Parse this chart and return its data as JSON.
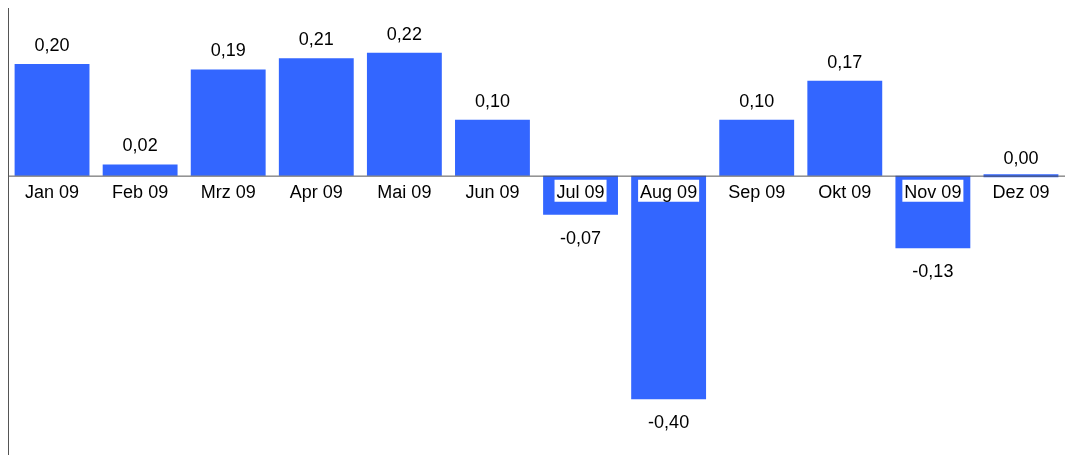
{
  "chart_data": {
    "type": "bar",
    "categories": [
      "Jan 09",
      "Feb 09",
      "Mrz 09",
      "Apr 09",
      "Mai 09",
      "Jun 09",
      "Jul 09",
      "Aug 09",
      "Sep 09",
      "Okt 09",
      "Nov 09",
      "Dez 09"
    ],
    "values": [
      0.2,
      0.02,
      0.19,
      0.21,
      0.22,
      0.1,
      -0.07,
      -0.4,
      0.1,
      0.17,
      -0.13,
      0.0
    ],
    "value_labels": [
      "0,20",
      "0,02",
      "0,19",
      "0,21",
      "0,22",
      "0,10",
      "-0,07",
      "-0,40",
      "0,10",
      "0,17",
      "-0,13",
      "0,00"
    ],
    "color": "#3366ff",
    "grid": false,
    "legend": false
  }
}
